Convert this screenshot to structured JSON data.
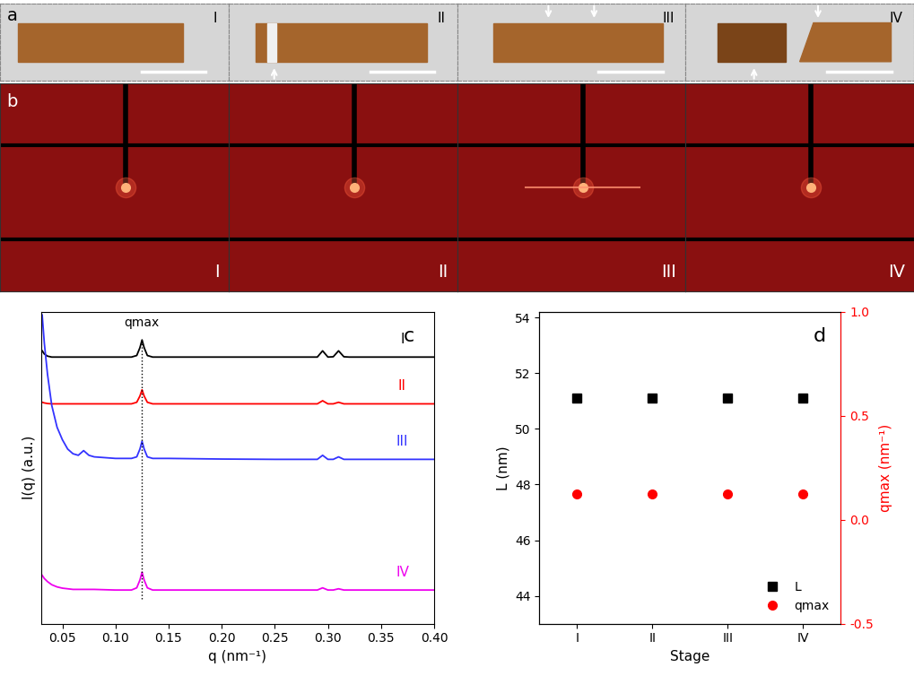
{
  "panels": {
    "a": {
      "label": "a",
      "stages": [
        "I",
        "II",
        "III",
        "IV"
      ]
    },
    "b": {
      "label": "b",
      "stages": [
        "I",
        "II",
        "III",
        "IV"
      ]
    }
  },
  "chart_data": [
    {
      "type": "line",
      "label": "c",
      "xlabel": "q (nm⁻¹)",
      "ylabel": "I(q) (a.u.)",
      "xlim": [
        0.03,
        0.4
      ],
      "xticks": [
        {
          "value": 0.05,
          "label": "0.05"
        },
        {
          "value": 0.1,
          "label": "0.10"
        },
        {
          "value": 0.15,
          "label": "0.15"
        },
        {
          "value": 0.2,
          "label": "0.20"
        },
        {
          "value": 0.25,
          "label": "0.25"
        },
        {
          "value": 0.3,
          "label": "0.30"
        },
        {
          "value": 0.35,
          "label": "0.35"
        },
        {
          "value": 0.4,
          "label": "0.40"
        }
      ],
      "ylim": [
        0,
        10
      ],
      "yticks": [],
      "tick_labels": "x",
      "annotations": [
        {
          "text": "qmax",
          "x": 0.125
        }
      ],
      "x": [
        0.031,
        0.033,
        0.036,
        0.04,
        0.045,
        0.05,
        0.055,
        0.06,
        0.065,
        0.07,
        0.075,
        0.08,
        0.1,
        0.115,
        0.12,
        0.123,
        0.125,
        0.127,
        0.13,
        0.135,
        0.15,
        0.2,
        0.25,
        0.29,
        0.295,
        0.3,
        0.305,
        0.31,
        0.315,
        0.32,
        0.35,
        0.4
      ],
      "series": [
        {
          "name": "I",
          "color": "#000000",
          "values": [
            8.75,
            8.65,
            8.58,
            8.55,
            8.55,
            8.55,
            8.55,
            8.55,
            8.55,
            8.55,
            8.55,
            8.55,
            8.55,
            8.55,
            8.6,
            8.85,
            9.1,
            8.85,
            8.6,
            8.55,
            8.55,
            8.55,
            8.55,
            8.55,
            8.75,
            8.55,
            8.56,
            8.75,
            8.56,
            8.55,
            8.55,
            8.55
          ]
        },
        {
          "name": "II",
          "color": "#ff0000",
          "values": [
            7.1,
            7.08,
            7.06,
            7.05,
            7.05,
            7.05,
            7.05,
            7.05,
            7.05,
            7.05,
            7.05,
            7.05,
            7.05,
            7.05,
            7.1,
            7.3,
            7.5,
            7.3,
            7.1,
            7.05,
            7.05,
            7.05,
            7.05,
            7.05,
            7.15,
            7.05,
            7.05,
            7.1,
            7.05,
            7.05,
            7.05,
            7.05
          ]
        },
        {
          "name": "III",
          "color": "#3333ff",
          "values": [
            9.9,
            9.0,
            8.0,
            7.0,
            6.3,
            5.9,
            5.6,
            5.45,
            5.4,
            5.55,
            5.4,
            5.35,
            5.3,
            5.3,
            5.35,
            5.6,
            5.85,
            5.6,
            5.35,
            5.3,
            5.3,
            5.28,
            5.27,
            5.27,
            5.4,
            5.27,
            5.27,
            5.35,
            5.27,
            5.27,
            5.27,
            5.27
          ]
        },
        {
          "name": "IV",
          "color": "#ee00ee",
          "values": [
            1.55,
            1.45,
            1.35,
            1.25,
            1.18,
            1.14,
            1.12,
            1.1,
            1.1,
            1.1,
            1.1,
            1.1,
            1.08,
            1.08,
            1.15,
            1.4,
            1.65,
            1.4,
            1.15,
            1.08,
            1.08,
            1.08,
            1.08,
            1.08,
            1.15,
            1.08,
            1.08,
            1.12,
            1.08,
            1.08,
            1.08,
            1.08
          ]
        }
      ]
    },
    {
      "type": "scatter",
      "label": "d",
      "xlabel": "Stage",
      "ylabel": "L (nm)",
      "y2label": "qmax (nm⁻¹)",
      "categories": [
        "I",
        "II",
        "III",
        "IV"
      ],
      "ylim": [
        43,
        54.2
      ],
      "yticks": [
        44,
        46,
        48,
        50,
        52,
        54
      ],
      "y2lim": [
        -0.5,
        1.0
      ],
      "y2ticks": [
        -0.5,
        0.0,
        0.5,
        1.0
      ],
      "legend": "lower right",
      "series": [
        {
          "name": "L",
          "color": "#000000",
          "marker": "square",
          "values": [
            51.1,
            51.1,
            51.1,
            51.1
          ]
        },
        {
          "name": "qmax",
          "color": "#ff0000",
          "marker": "circle",
          "axis": "y2",
          "values": [
            0.125,
            0.125,
            0.125,
            0.125
          ]
        }
      ]
    }
  ]
}
